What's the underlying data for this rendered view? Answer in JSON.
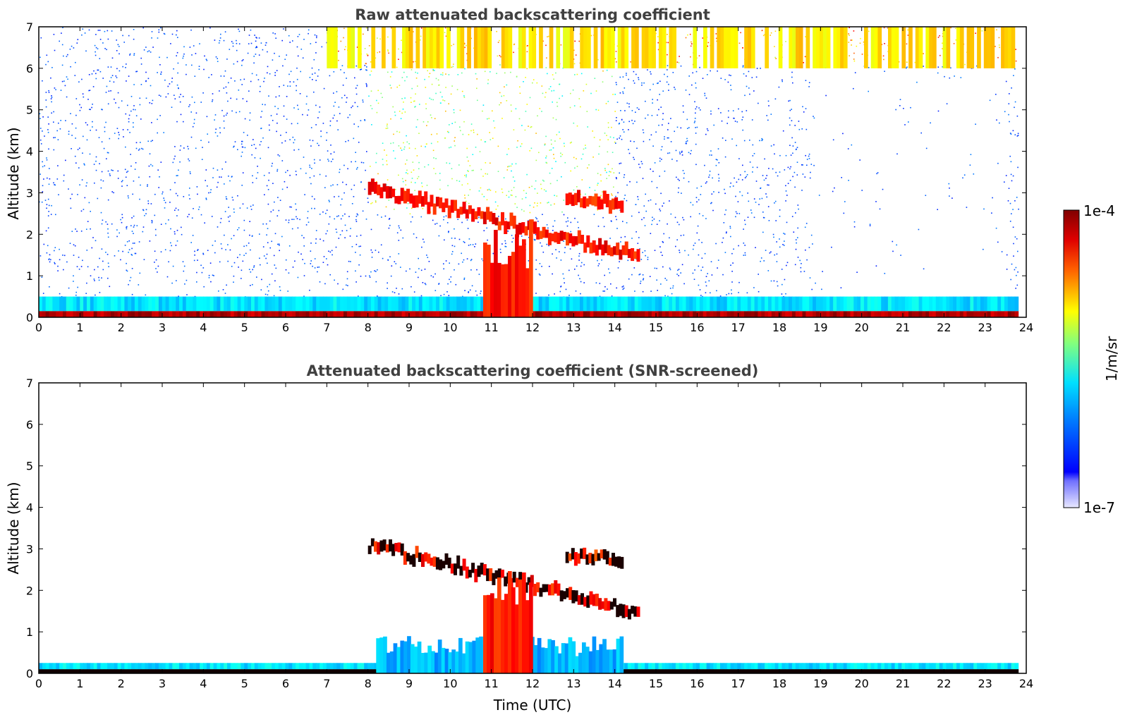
{
  "chart_data": [
    {
      "type": "heatmap",
      "title": "Raw attenuated backscattering coefficient",
      "ylabel": "Altitude (km)",
      "xlabel": "",
      "xlim": [
        0,
        24
      ],
      "ylim": [
        0,
        7
      ],
      "xticks": [
        "0",
        "1",
        "2",
        "3",
        "4",
        "5",
        "6",
        "7",
        "8",
        "9",
        "10",
        "11",
        "12",
        "13",
        "14",
        "15",
        "16",
        "17",
        "18",
        "19",
        "20",
        "21",
        "22",
        "23",
        "24"
      ],
      "yticks": [
        "0",
        "1",
        "2",
        "3",
        "4",
        "5",
        "6",
        "7"
      ],
      "features": [
        {
          "kind": "surface_layer",
          "x": [
            0,
            23.8
          ],
          "y": [
            0,
            0.15
          ],
          "level": 0.95
        },
        {
          "kind": "boundary_layer",
          "x": [
            0,
            23.8
          ],
          "y": [
            0.15,
            0.5
          ],
          "level": 0.35
        },
        {
          "kind": "cloud_layer",
          "x": [
            8.0,
            14.6
          ],
          "y_start": 3.1,
          "y_end": 1.45,
          "level": 0.92
        },
        {
          "kind": "cloud_layer",
          "x": [
            12.8,
            14.2
          ],
          "y_start": 2.85,
          "y_end": 2.75,
          "level": 0.9
        },
        {
          "kind": "convective_cloud",
          "x": [
            10.8,
            12.0
          ],
          "y": [
            0,
            2.6
          ],
          "level": 0.85
        },
        {
          "kind": "upper_noise",
          "x": [
            7.0,
            23.8
          ],
          "y": [
            6.0,
            7.0
          ],
          "level": 0.65
        }
      ]
    },
    {
      "type": "heatmap",
      "title": "Attenuated backscattering coefficient (SNR-screened)",
      "ylabel": "Altitude (km)",
      "xlabel": "Time (UTC)",
      "xlim": [
        0,
        24
      ],
      "ylim": [
        0,
        7
      ],
      "xticks": [
        "0",
        "1",
        "2",
        "3",
        "4",
        "5",
        "6",
        "7",
        "8",
        "9",
        "10",
        "11",
        "12",
        "13",
        "14",
        "15",
        "16",
        "17",
        "18",
        "19",
        "20",
        "21",
        "22",
        "23",
        "24"
      ],
      "yticks": [
        "0",
        "1",
        "2",
        "3",
        "4",
        "5",
        "6",
        "7"
      ],
      "features": [
        {
          "kind": "surface_layer",
          "x": [
            0,
            23.8
          ],
          "y": [
            0,
            0.1
          ],
          "level": 1.0
        },
        {
          "kind": "boundary_layer",
          "x": [
            0,
            23.8
          ],
          "y": [
            0.1,
            0.25
          ],
          "level": 0.35
        },
        {
          "kind": "aerosol_layer",
          "x": [
            8.2,
            14.2
          ],
          "y": [
            0,
            0.9
          ],
          "level": 0.3
        },
        {
          "kind": "cloud_layer",
          "x": [
            8.0,
            14.6
          ],
          "y_start": 3.1,
          "y_end": 1.45,
          "level": 0.92
        },
        {
          "kind": "cloud_layer",
          "x": [
            12.8,
            14.2
          ],
          "y_start": 2.85,
          "y_end": 2.75,
          "level": 0.9
        },
        {
          "kind": "convective_cloud",
          "x": [
            10.8,
            12.0
          ],
          "y": [
            0,
            2.6
          ],
          "level": 0.85
        }
      ]
    }
  ],
  "colorbar": {
    "max_label": "1e-4",
    "min_label": "1e-7",
    "unit_label": "1/m/sr",
    "scale": "log"
  }
}
